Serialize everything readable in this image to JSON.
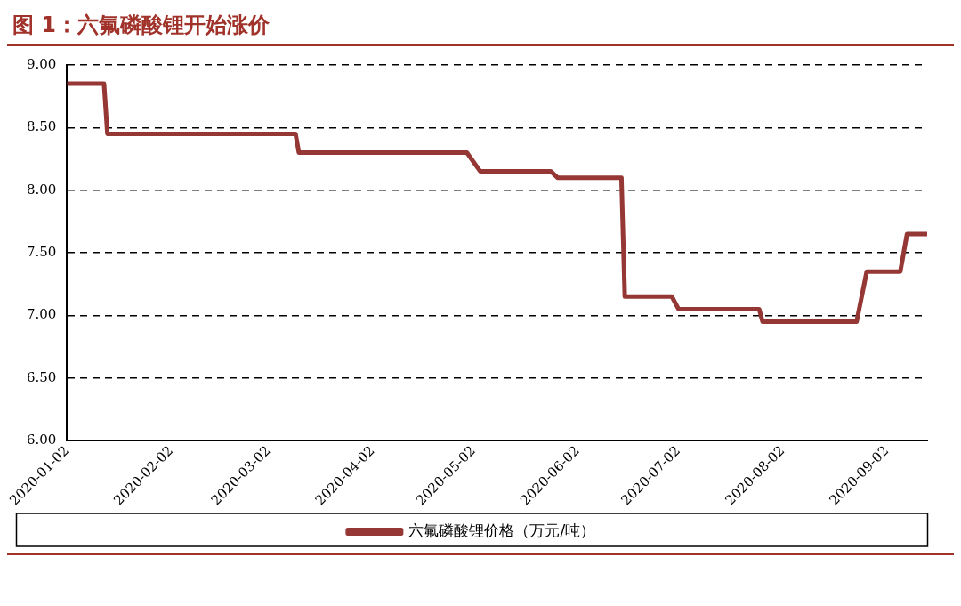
{
  "chart_data": {
    "type": "line",
    "title": "图 1：六氟磷酸锂开始涨价",
    "series": [
      {
        "name": "六氟磷酸锂价格（万元/吨）",
        "color": "#953735",
        "x": [
          "2020-01-02",
          "2020-01-13",
          "2020-01-14",
          "2020-03-10",
          "2020-03-11",
          "2020-04-30",
          "2020-05-04",
          "2020-05-25",
          "2020-05-27",
          "2020-06-15",
          "2020-06-16",
          "2020-06-30",
          "2020-07-02",
          "2020-07-26",
          "2020-07-27",
          "2020-08-24",
          "2020-08-27",
          "2020-09-06",
          "2020-09-08",
          "2020-09-14"
        ],
        "values": [
          8.85,
          8.85,
          8.45,
          8.45,
          8.3,
          8.3,
          8.15,
          8.15,
          8.1,
          8.1,
          7.15,
          7.15,
          7.05,
          7.05,
          6.95,
          6.95,
          7.35,
          7.35,
          7.65,
          7.65
        ]
      }
    ],
    "xlim": [
      "2020-01-02",
      "2020-09-14"
    ],
    "xticks": [
      "2020-01-02",
      "2020-02-02",
      "2020-03-02",
      "2020-04-02",
      "2020-05-02",
      "2020-06-02",
      "2020-07-02",
      "2020-08-02",
      "2020-09-02"
    ],
    "ylim": [
      6,
      9
    ],
    "yticks": [
      {
        "value": 6,
        "label": "6.00"
      },
      {
        "value": 6.5,
        "label": "6.50"
      },
      {
        "value": 7,
        "label": "7.00"
      },
      {
        "value": 7.5,
        "label": "7.50"
      },
      {
        "value": 8,
        "label": "8.00"
      },
      {
        "value": 8.5,
        "label": "8.50"
      },
      {
        "value": 9,
        "label": "9.00"
      }
    ],
    "grid": "y",
    "legend": "bottom",
    "marker": "none",
    "line_style": "solid"
  }
}
